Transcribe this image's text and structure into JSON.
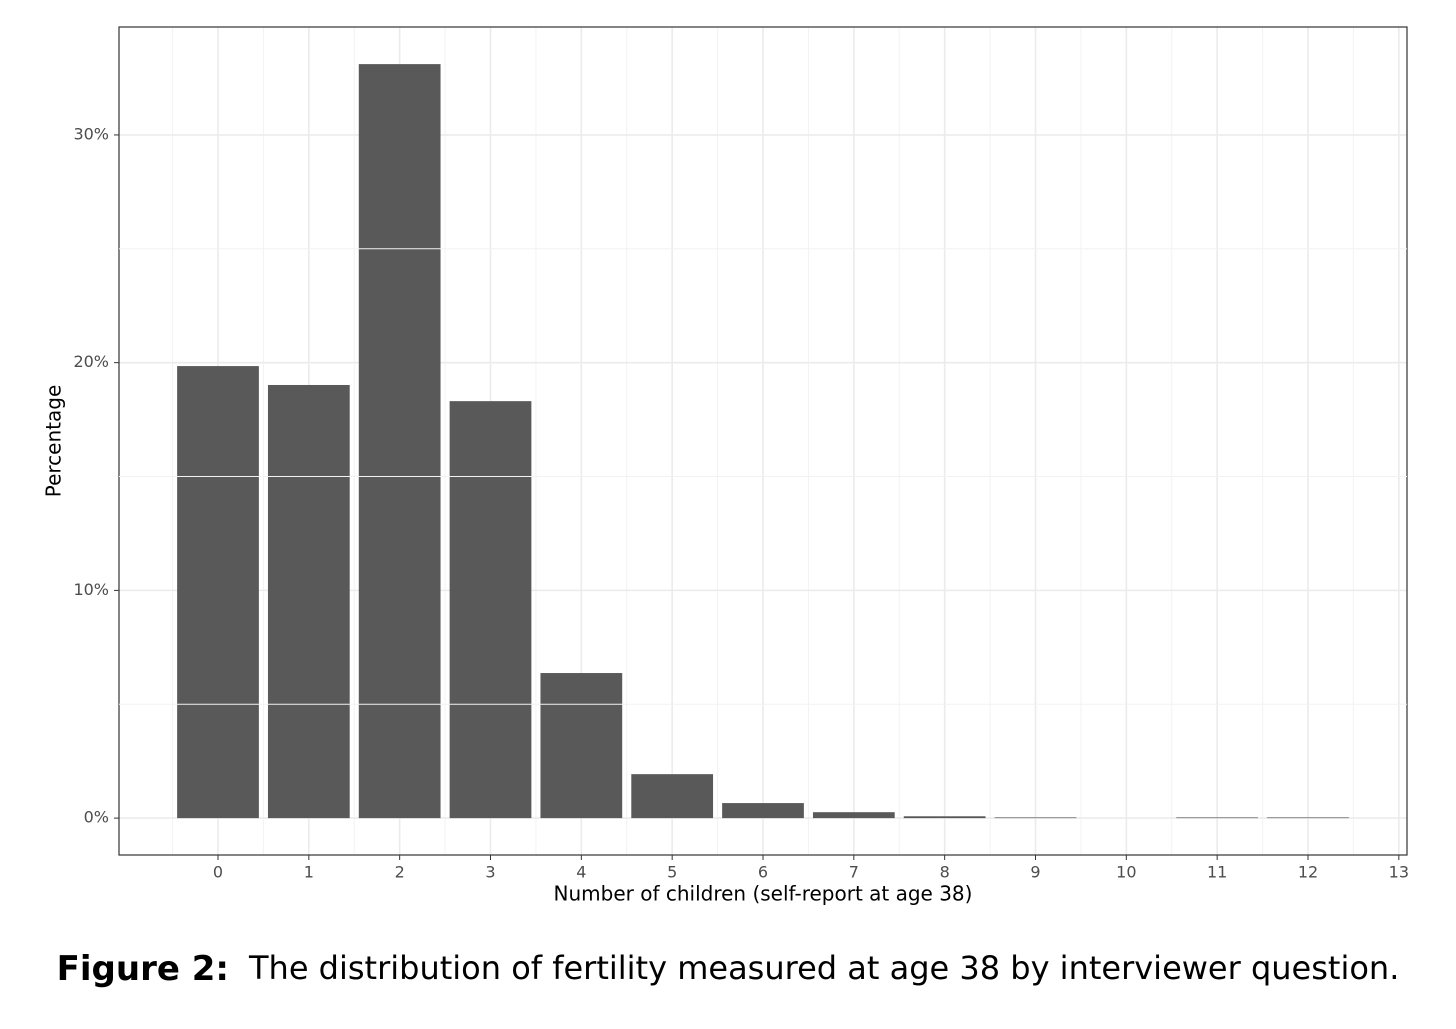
{
  "chart_data": {
    "type": "bar",
    "x": [
      0,
      1,
      2,
      3,
      4,
      5,
      6,
      7,
      8,
      9,
      10,
      11,
      12
    ],
    "values": [
      19.85,
      19.02,
      33.11,
      18.31,
      6.37,
      1.93,
      0.66,
      0.26,
      0.08,
      0.03,
      0,
      0.03,
      0.03
    ],
    "color": "#595959",
    "xlim": [
      -1.09,
      13.09
    ],
    "xticks": [
      0,
      1,
      2,
      3,
      4,
      5,
      6,
      7,
      8,
      9,
      10,
      11,
      12,
      13
    ],
    "ylim": [
      -1.62,
      34.74
    ],
    "yticks": [
      {
        "value": 0,
        "label": "0%"
      },
      {
        "value": 10,
        "label": "10%"
      },
      {
        "value": 20,
        "label": "20%"
      },
      {
        "value": 30,
        "label": "30%"
      }
    ],
    "xlabel": "Number of children (self-report at age 38)",
    "ylabel": "Percentage",
    "grid": true,
    "caption_label": "Figure 2:",
    "caption_text": "The distribution of fertility measured at age 38 by interviewer question."
  }
}
